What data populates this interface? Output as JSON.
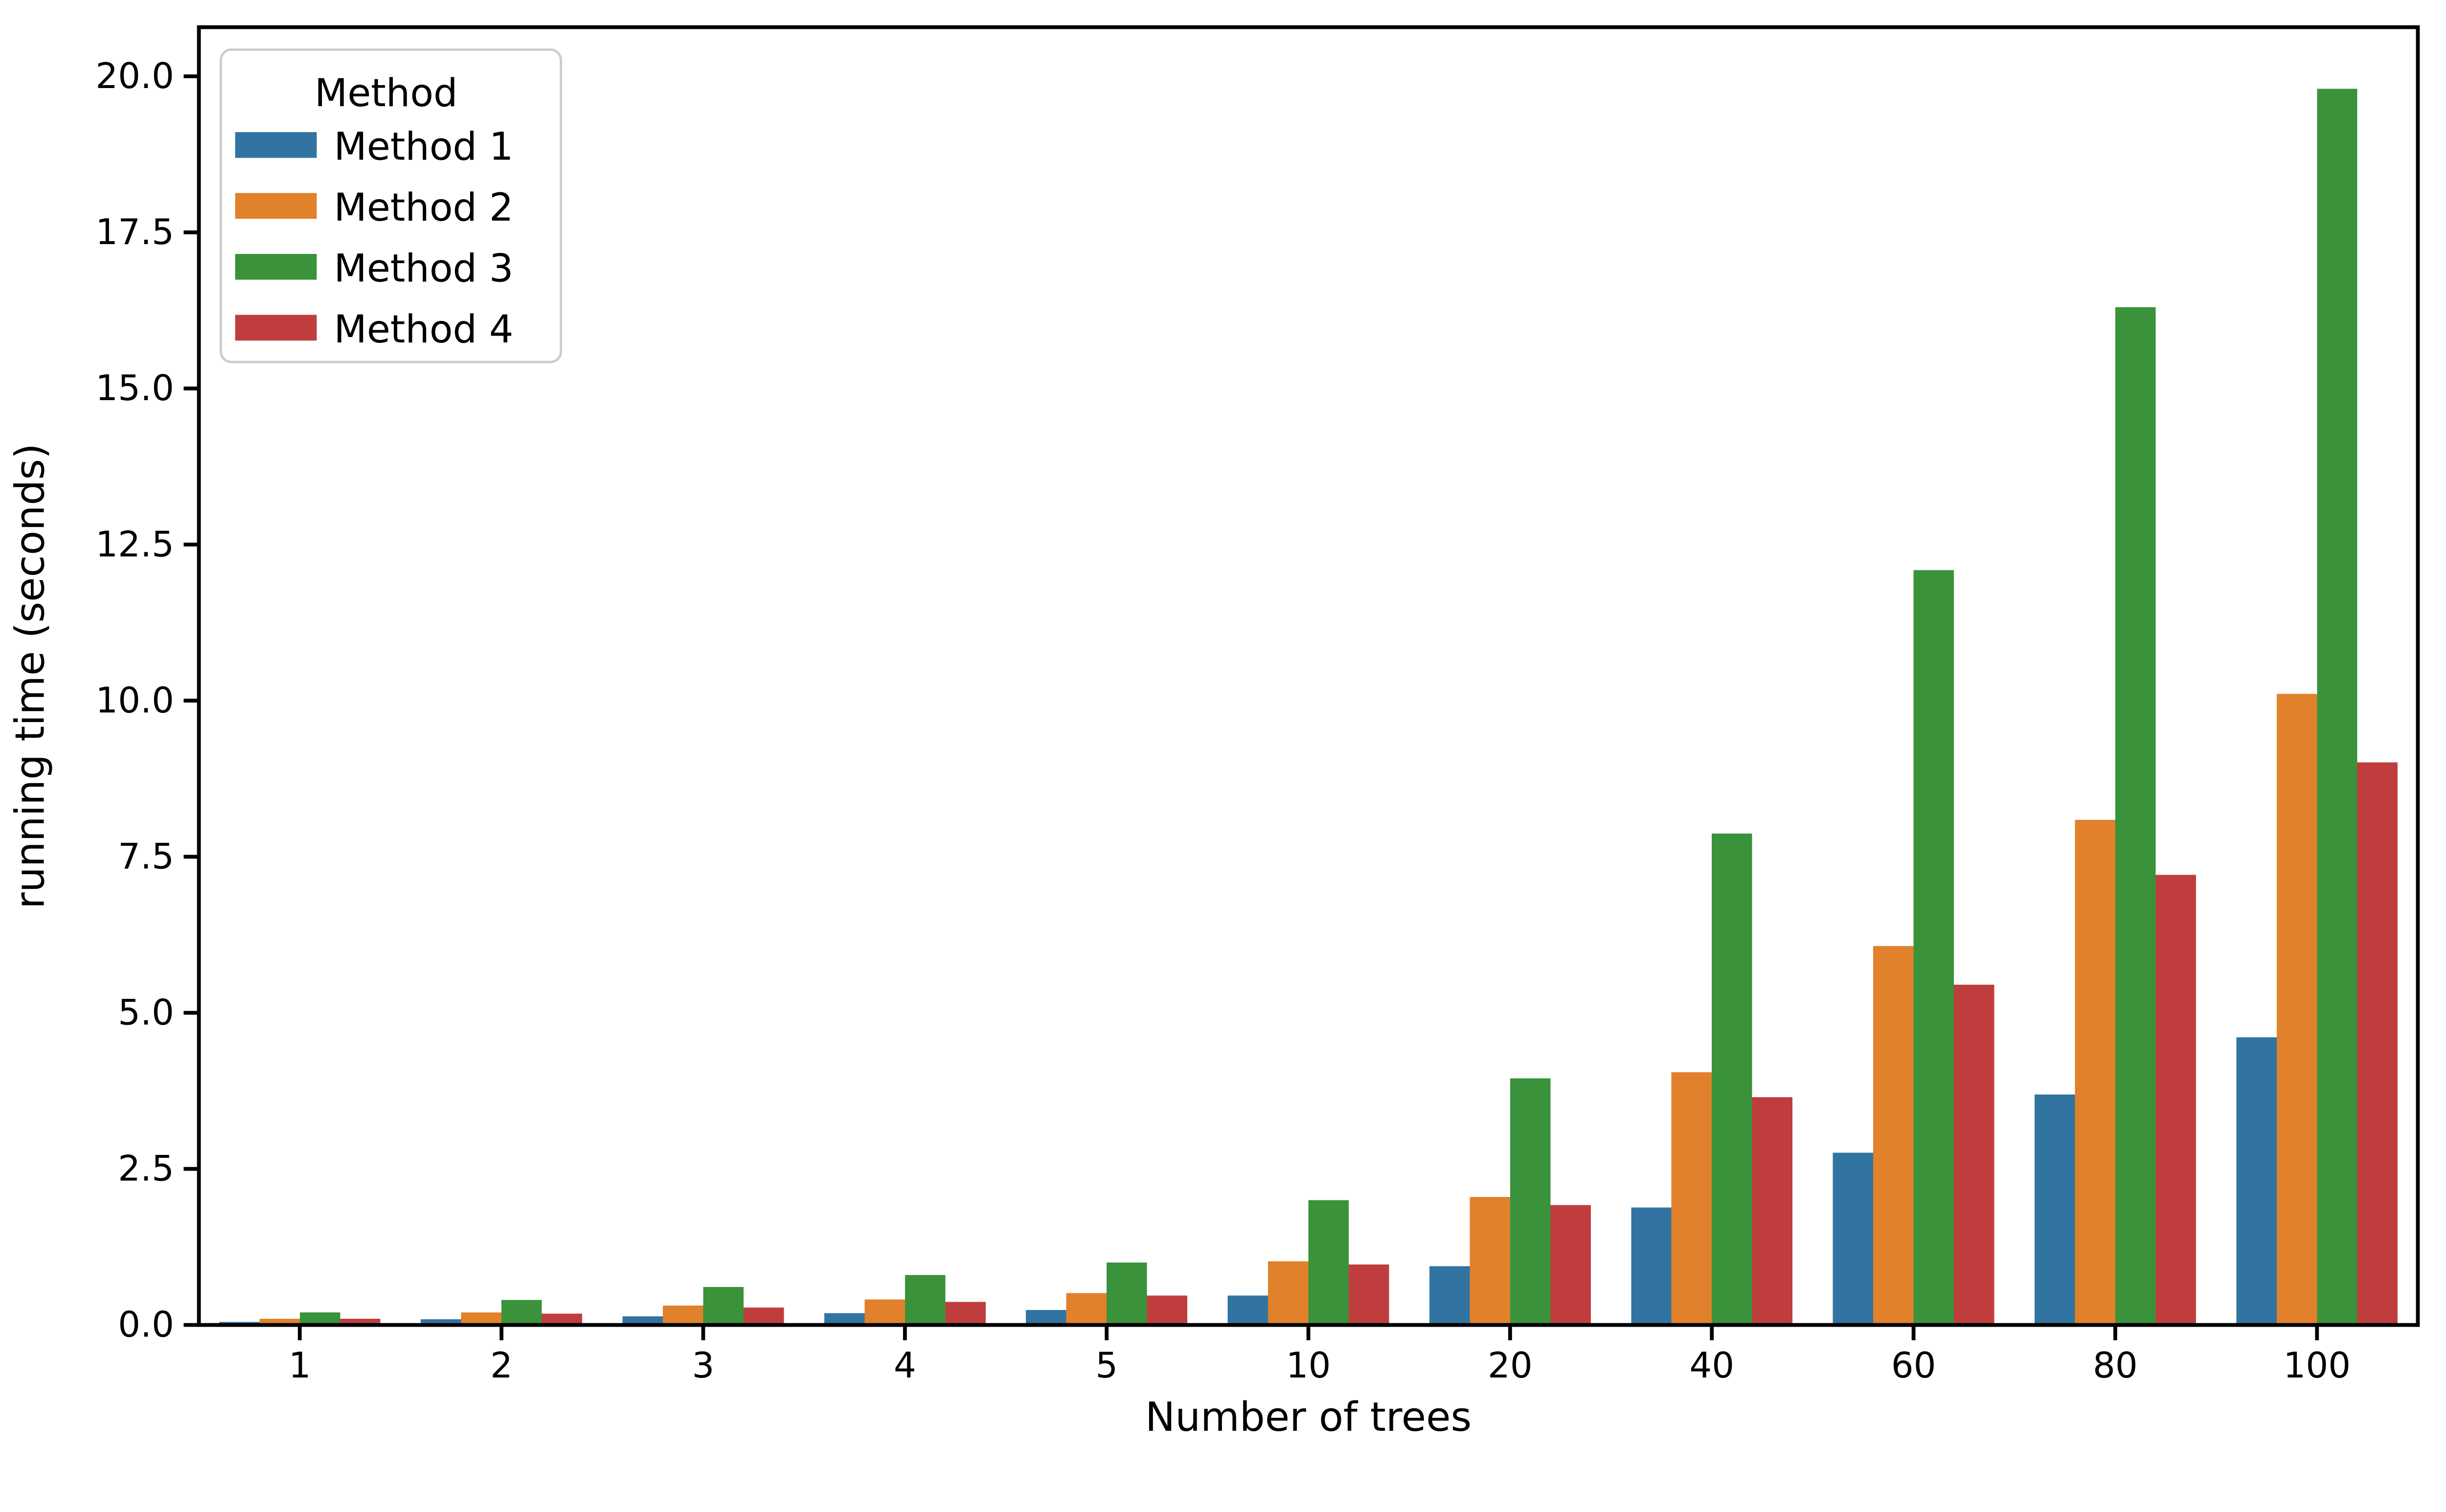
{
  "chart_data": {
    "type": "bar",
    "title": "",
    "xlabel": "Number of trees",
    "ylabel": "running time (seconds)",
    "categories": [
      "1",
      "2",
      "3",
      "4",
      "5",
      "10",
      "20",
      "40",
      "60",
      "80",
      "100"
    ],
    "series": [
      {
        "name": "Method 1",
        "color": "#3274a1",
        "values": [
          0.05,
          0.09,
          0.14,
          0.19,
          0.24,
          0.47,
          0.94,
          1.88,
          2.76,
          3.69,
          4.61
        ]
      },
      {
        "name": "Method 2",
        "color": "#e1812c",
        "values": [
          0.1,
          0.2,
          0.31,
          0.41,
          0.51,
          1.02,
          2.05,
          4.05,
          6.07,
          8.09,
          10.11
        ]
      },
      {
        "name": "Method 3",
        "color": "#3a923a",
        "values": [
          0.2,
          0.4,
          0.61,
          0.8,
          1.0,
          2.0,
          3.95,
          7.87,
          12.09,
          16.3,
          19.8
        ]
      },
      {
        "name": "Method 4",
        "color": "#c03d3e",
        "values": [
          0.1,
          0.18,
          0.28,
          0.37,
          0.47,
          0.97,
          1.92,
          3.65,
          5.45,
          7.21,
          9.01
        ]
      }
    ],
    "legend": {
      "title": "Method",
      "position": "upper left",
      "entries": [
        "Method 1",
        "Method 2",
        "Method 3",
        "Method 4"
      ]
    },
    "yticks": [
      "0.0",
      "2.5",
      "5.0",
      "7.5",
      "10.0",
      "12.5",
      "15.0",
      "17.5",
      "20.0"
    ],
    "ytick_values": [
      0,
      2.5,
      5,
      7.5,
      10,
      12.5,
      15,
      17.5,
      20
    ],
    "ylim": [
      0,
      20.79
    ],
    "grid": false,
    "style": {
      "spine_color": "#000000",
      "tick_color": "#000000",
      "legend_border_color": "#cccccc",
      "background": "#ffffff"
    }
  }
}
